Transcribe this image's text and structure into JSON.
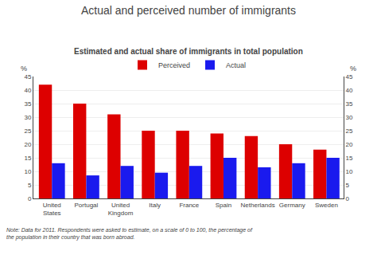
{
  "chart_data": {
    "type": "bar",
    "title": "Actual and perceived number of immigrants",
    "subtitle": "Estimated and actual share of immigrants in total population",
    "note": "Note: Data for 2011. Respondents were asked to estimate, on a scale of 0 to 100, the percentage of the population in their country that was born abroad.",
    "ylabel": "%",
    "y2label": "%",
    "categories": [
      "United\nStates",
      "Portugal",
      "United\nKingdom",
      "Italy",
      "France",
      "Spain",
      "Netherlands",
      "Germany",
      "Sweden"
    ],
    "series": [
      {
        "name": "Perceived",
        "color": "#dd0000",
        "values": [
          42,
          35,
          31,
          25,
          25,
          24,
          23,
          20,
          18
        ]
      },
      {
        "name": "Actual",
        "color": "#1a1aee",
        "values": [
          13,
          8.5,
          12,
          9.5,
          12,
          15,
          11.5,
          13,
          15
        ]
      }
    ],
    "ylim": [
      0,
      45
    ],
    "yticks": [
      0,
      5,
      10,
      15,
      20,
      25,
      30,
      35,
      40,
      45
    ],
    "y2lim": [
      0,
      45
    ],
    "y2ticks": [
      0,
      5,
      10,
      15,
      20,
      25,
      30,
      35,
      40,
      45
    ],
    "grid": true,
    "legend": "top"
  }
}
